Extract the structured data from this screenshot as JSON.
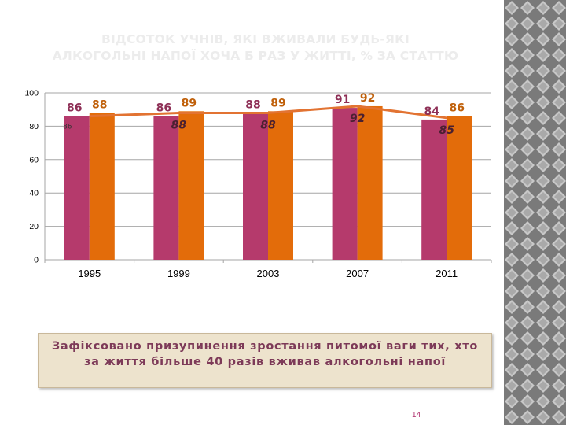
{
  "title_lines": [
    "ВІДСОТОК УЧНІВ, ЯКІ ВЖИВАЛИ БУДЬ-ЯКІ",
    "АЛКОГОЛЬНІ НАПОЇ ХОЧА Б РАЗ У ЖИТТІ, % ЗА СТАТТЮ"
  ],
  "chart_data": {
    "type": "bar",
    "categories": [
      "1995",
      "1999",
      "2003",
      "2007",
      "2011"
    ],
    "ylim": [
      0,
      100
    ],
    "yticks": [
      0,
      20,
      40,
      60,
      80,
      100
    ],
    "grid": true,
    "legend": "none",
    "series": [
      {
        "values": [
          86,
          86,
          88,
          91,
          84
        ],
        "color": "#b53a6c",
        "value_labels": [
          "86",
          "86",
          "88",
          "91",
          "84"
        ],
        "label_color": "#8e2f56"
      },
      {
        "values": [
          88,
          89,
          89,
          92,
          86
        ],
        "color": "#e36c0a",
        "value_labels": [
          "88",
          "89",
          "89",
          "92",
          "86"
        ],
        "label_color": "#c0600a"
      }
    ],
    "line": {
      "values": [
        86,
        88,
        88,
        92,
        85
      ],
      "color": "#e27332",
      "value_labels": [
        "86",
        "88",
        "88",
        "92",
        "85"
      ]
    }
  },
  "note": {
    "text": "Зафіксовано призупинення зростання питомої ваги тих, хто за життя більше 40 разів вживав алкогольні напої"
  },
  "page_number": "14",
  "colors": {
    "pattern_dark": "#7a7a7a",
    "pattern_light": "#c8c8c8",
    "note_bg": "#ede3cd",
    "note_text": "#7d3a58"
  }
}
